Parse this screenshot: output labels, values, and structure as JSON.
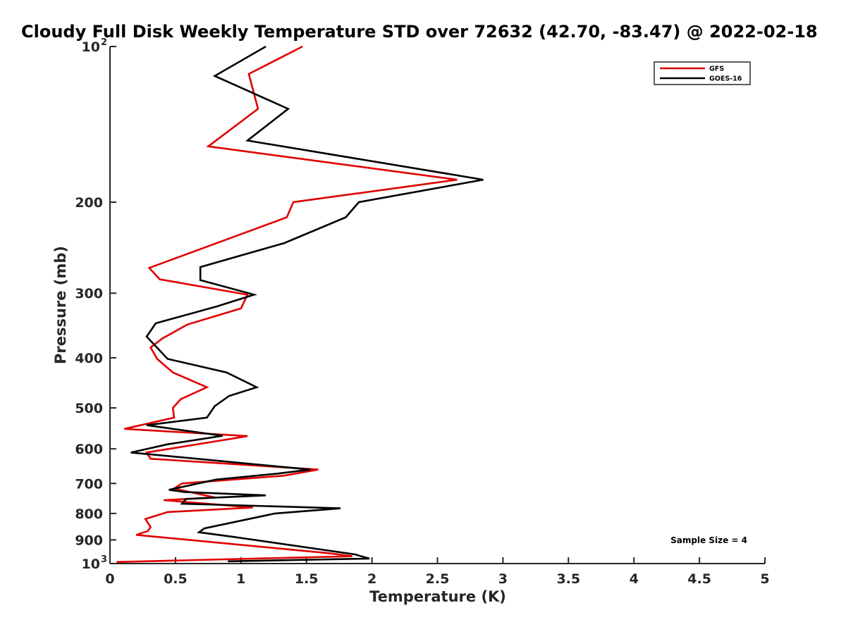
{
  "chart_data": {
    "type": "line",
    "title": "Cloudy Full Disk Weekly Temperature STD over 72632 (42.70, -83.47) @ 2022-02-18",
    "xlabel": "Temperature (K)",
    "ylabel": "Pressure (mb)",
    "xlim": [
      0,
      5
    ],
    "ylim": [
      1000,
      100
    ],
    "yscale": "log",
    "yreversed": true,
    "grid": false,
    "legend_position": "top-right",
    "xticks": [
      "0",
      "0.5",
      "1",
      "1.5",
      "2",
      "2.5",
      "3",
      "3.5",
      "4",
      "4.5",
      "5"
    ],
    "xtick_values": [
      0,
      0.5,
      1,
      1.5,
      2,
      2.5,
      3,
      3.5,
      4,
      4.5,
      5
    ],
    "yticks": [
      {
        "label": "10",
        "sup": "2",
        "value": 100
      },
      {
        "label": "200",
        "sup": "",
        "value": 200
      },
      {
        "label": "300",
        "sup": "",
        "value": 300
      },
      {
        "label": "400",
        "sup": "",
        "value": 400
      },
      {
        "label": "500",
        "sup": "",
        "value": 500
      },
      {
        "label": "600",
        "sup": "",
        "value": 600
      },
      {
        "label": "700",
        "sup": "",
        "value": 700
      },
      {
        "label": "800",
        "sup": "",
        "value": 800
      },
      {
        "label": "900",
        "sup": "",
        "value": 900
      },
      {
        "label": "10",
        "sup": "3",
        "value": 1000
      }
    ],
    "series": [
      {
        "name": "GFS",
        "color": "#e00000",
        "points": [
          [
            1.47,
            100
          ],
          [
            1.06,
            113
          ],
          [
            1.13,
            132
          ],
          [
            0.75,
            156
          ],
          [
            2.65,
            181
          ],
          [
            1.4,
            200
          ],
          [
            1.35,
            214
          ],
          [
            0.3,
            268
          ],
          [
            0.38,
            282
          ],
          [
            1.05,
            302
          ],
          [
            1.0,
            321
          ],
          [
            0.59,
            345
          ],
          [
            0.4,
            367
          ],
          [
            0.31,
            382
          ],
          [
            0.36,
            402
          ],
          [
            0.48,
            427
          ],
          [
            0.74,
            456
          ],
          [
            0.54,
            481
          ],
          [
            0.48,
            500
          ],
          [
            0.49,
            522
          ],
          [
            0.11,
            549
          ],
          [
            1.05,
            567
          ],
          [
            0.28,
            610
          ],
          [
            0.31,
            627
          ],
          [
            1.59,
            658
          ],
          [
            1.33,
            676
          ],
          [
            0.55,
            700
          ],
          [
            0.49,
            716
          ],
          [
            0.8,
            745
          ],
          [
            0.41,
            754
          ],
          [
            1.09,
            779
          ],
          [
            0.44,
            795
          ],
          [
            0.27,
            820
          ],
          [
            0.31,
            850
          ],
          [
            0.29,
            865
          ],
          [
            0.2,
            880
          ],
          [
            1.67,
            955
          ],
          [
            1.85,
            968
          ],
          [
            0.05,
            993
          ]
        ]
      },
      {
        "name": "GOES-16",
        "color": "#000000",
        "points": [
          [
            1.19,
            100
          ],
          [
            0.8,
            114
          ],
          [
            1.36,
            132
          ],
          [
            1.05,
            152
          ],
          [
            2.85,
            181
          ],
          [
            1.9,
            200
          ],
          [
            1.8,
            214
          ],
          [
            1.33,
            240
          ],
          [
            0.69,
            267
          ],
          [
            0.69,
            283
          ],
          [
            1.1,
            302
          ],
          [
            0.82,
            318
          ],
          [
            0.35,
            343
          ],
          [
            0.28,
            364
          ],
          [
            0.44,
            402
          ],
          [
            0.89,
            427
          ],
          [
            1.12,
            456
          ],
          [
            0.91,
            474
          ],
          [
            0.8,
            496
          ],
          [
            0.74,
            522
          ],
          [
            0.28,
            540
          ],
          [
            0.86,
            566
          ],
          [
            0.44,
            588
          ],
          [
            0.16,
            610
          ],
          [
            0.4,
            618
          ],
          [
            1.53,
            658
          ],
          [
            1.28,
            670
          ],
          [
            0.81,
            688
          ],
          [
            0.45,
            720
          ],
          [
            0.57,
            727
          ],
          [
            1.19,
            738
          ],
          [
            0.58,
            750
          ],
          [
            0.55,
            766
          ],
          [
            1.76,
            782
          ],
          [
            1.26,
            800
          ],
          [
            0.72,
            855
          ],
          [
            0.68,
            870
          ],
          [
            0.94,
            888
          ],
          [
            1.87,
            960
          ],
          [
            1.98,
            978
          ],
          [
            0.9,
            990
          ]
        ]
      }
    ],
    "annotation": "Sample Size = 4"
  }
}
